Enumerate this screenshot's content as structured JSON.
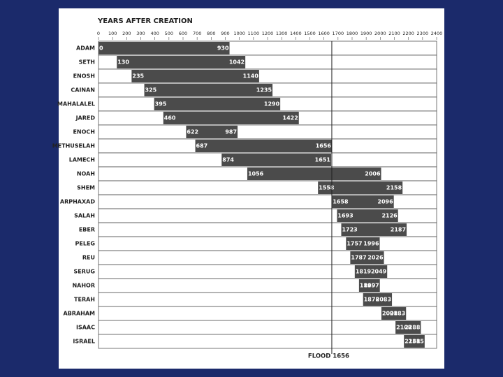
{
  "chart_data": {
    "type": "range-bar",
    "title": "YEARS AFTER CREATION",
    "color": "#4b4b4b",
    "background": "#1b2a6b",
    "xlim": [
      0,
      2400
    ],
    "xticks": [
      0,
      100,
      200,
      300,
      400,
      500,
      600,
      700,
      800,
      900,
      1000,
      1100,
      1200,
      1300,
      1400,
      1500,
      1600,
      1700,
      1800,
      1900,
      2000,
      2100,
      2200,
      2300,
      2400
    ],
    "bars": [
      {
        "label": "ADAM",
        "start": 0,
        "end": 930
      },
      {
        "label": "SETH",
        "start": 130,
        "end": 1042
      },
      {
        "label": "ENOSH",
        "start": 235,
        "end": 1140
      },
      {
        "label": "CAINAN",
        "start": 325,
        "end": 1235
      },
      {
        "label": "MAHALALEL",
        "start": 395,
        "end": 1290
      },
      {
        "label": "JARED",
        "start": 460,
        "end": 1422
      },
      {
        "label": "ENOCH",
        "start": 622,
        "end": 987
      },
      {
        "label": "METHUSELAH",
        "start": 687,
        "end": 1656
      },
      {
        "label": "LAMECH",
        "start": 874,
        "end": 1651
      },
      {
        "label": "NOAH",
        "start": 1056,
        "end": 2006
      },
      {
        "label": "SHEM",
        "start": 1558,
        "end": 2158
      },
      {
        "label": "ARPHAXAD",
        "start": 1658,
        "end": 2096
      },
      {
        "label": "SALAH",
        "start": 1693,
        "end": 2126
      },
      {
        "label": "EBER",
        "start": 1723,
        "end": 2187
      },
      {
        "label": "PELEG",
        "start": 1757,
        "end": 1996
      },
      {
        "label": "REU",
        "start": 1787,
        "end": 2026
      },
      {
        "label": "SERUG",
        "start": 1819,
        "end": 2049
      },
      {
        "label": "NAHOR",
        "start": 1849,
        "end": 1997
      },
      {
        "label": "TERAH",
        "start": 1878,
        "end": 2083
      },
      {
        "label": "ABRAHAM",
        "start": 2008,
        "end": 2183
      },
      {
        "label": "ISAAC",
        "start": 2108,
        "end": 2288
      },
      {
        "label": "ISRAEL",
        "start": 2168,
        "end": 2315
      }
    ],
    "annotation": {
      "label": "FLOOD 1656",
      "value": 1656
    }
  }
}
